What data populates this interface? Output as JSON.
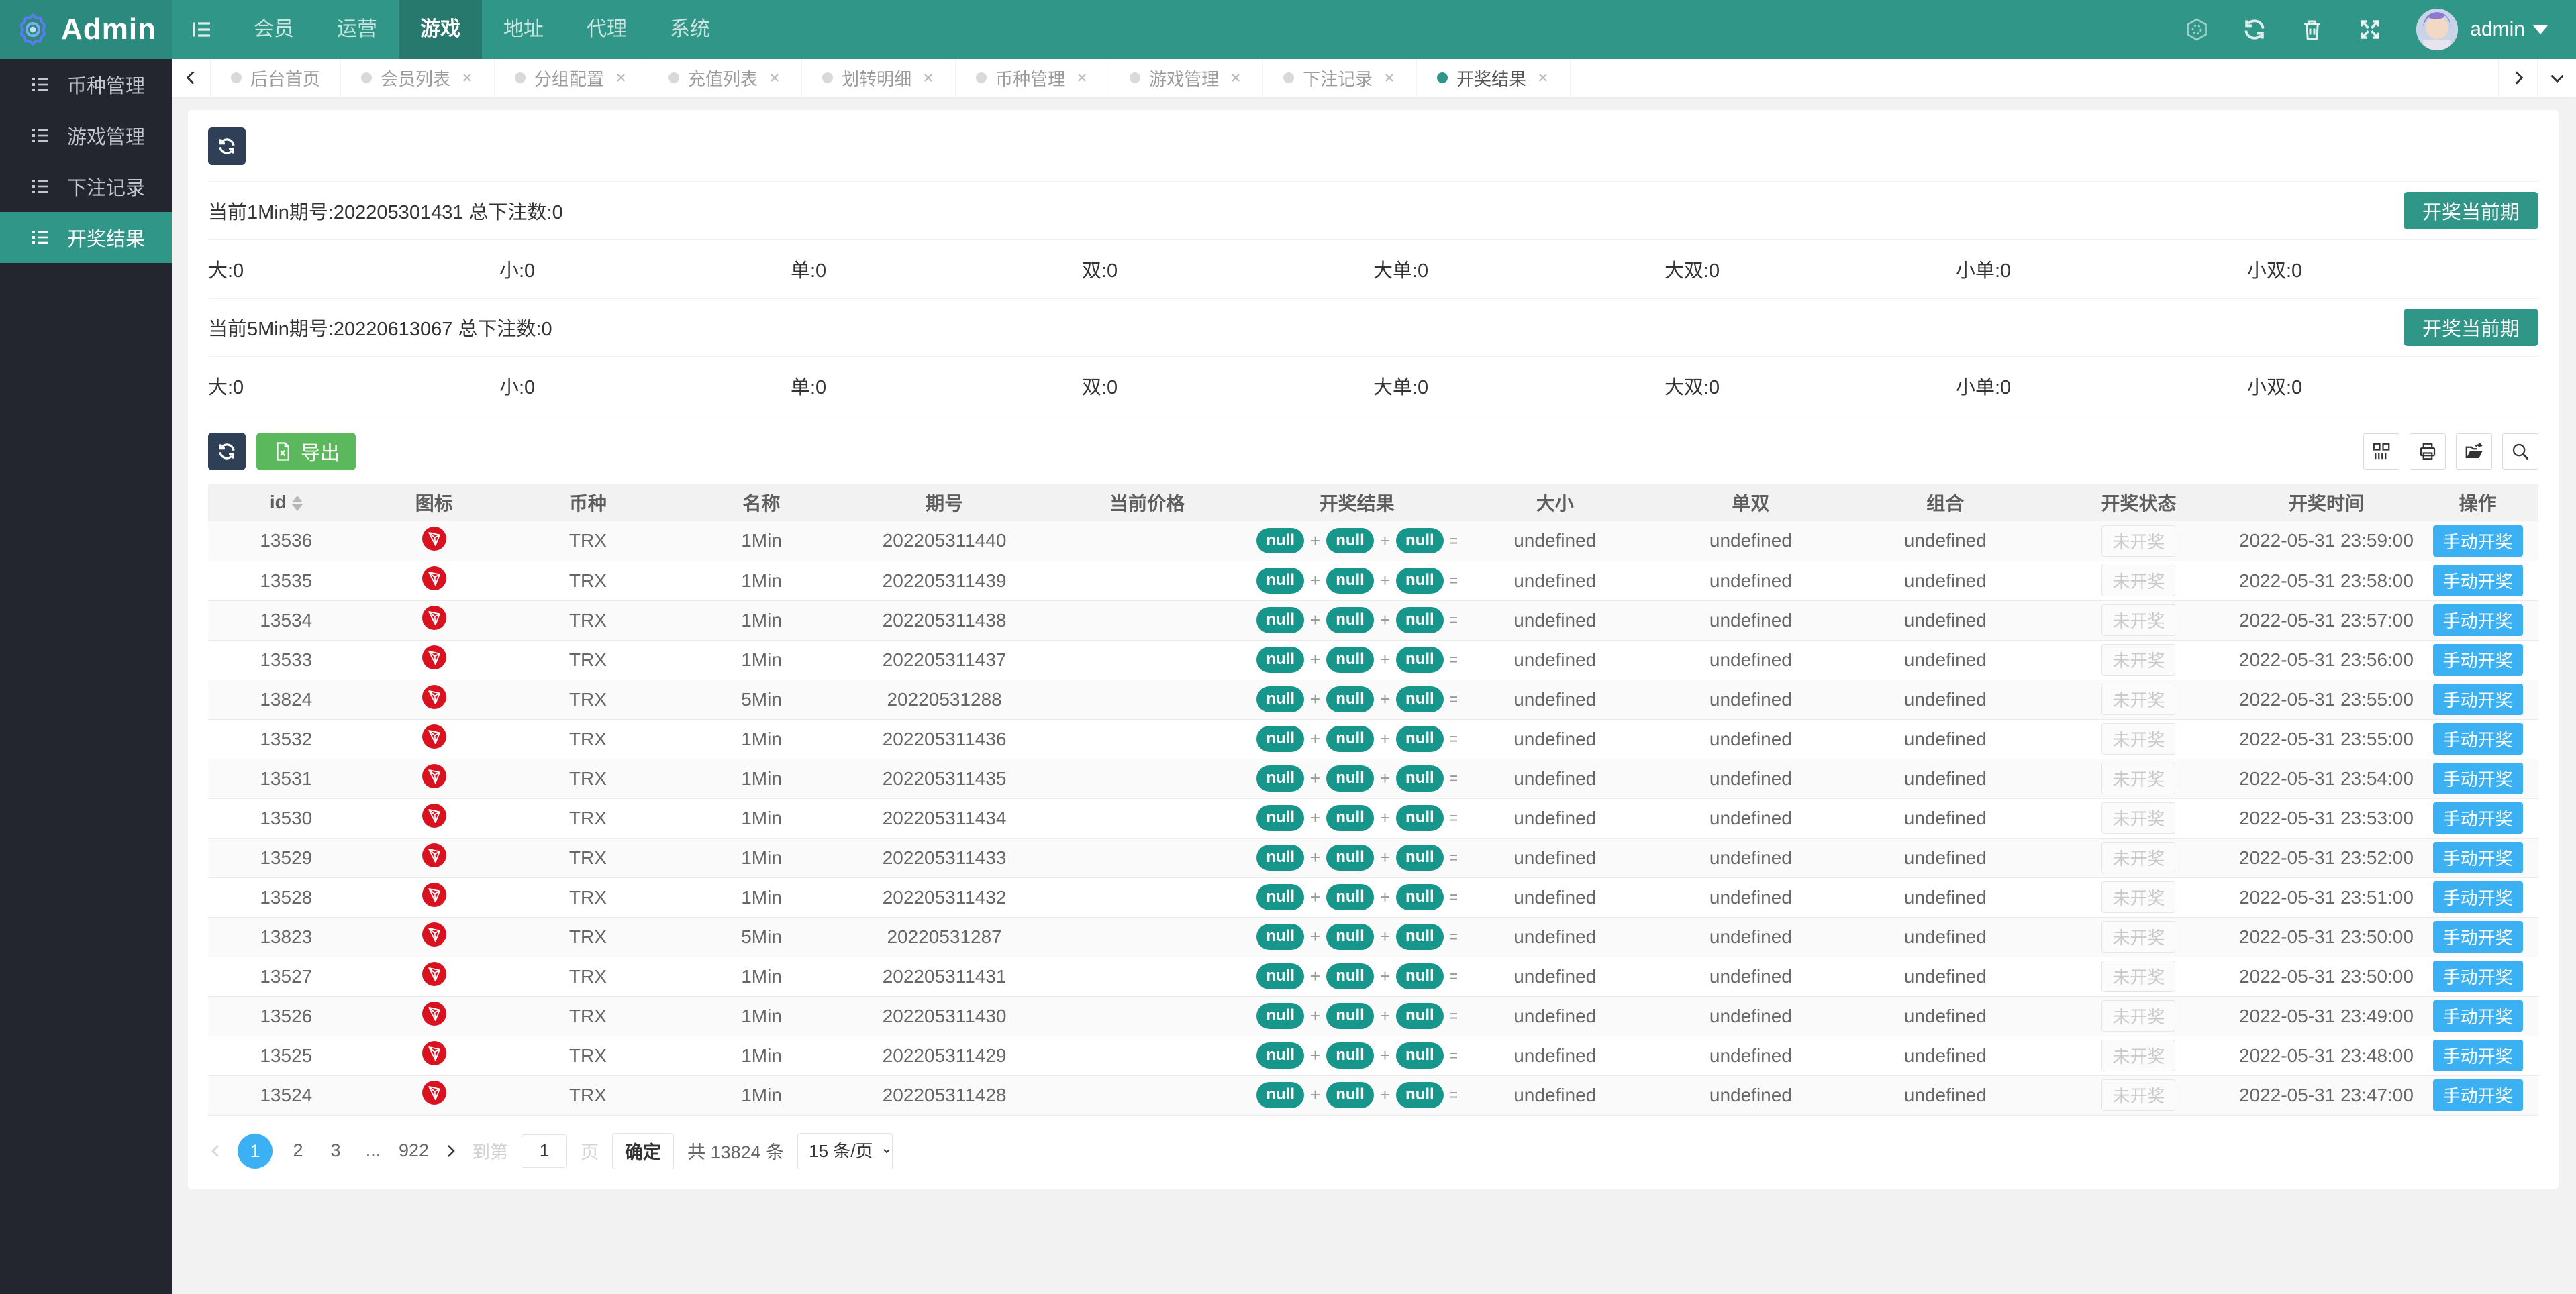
{
  "theme": {
    "teal": "#2f9688",
    "dark_sidebar": "#23262e",
    "navy": "#2f4056",
    "green": "#5cb85c",
    "blue": "#3bb0f2",
    "badge_teal": "#17968b",
    "trx_red": "#d8121f"
  },
  "header": {
    "logo_text": "Admin",
    "nav_items": [
      {
        "label": "会员",
        "active": false
      },
      {
        "label": "运营",
        "active": false
      },
      {
        "label": "游戏",
        "active": true
      },
      {
        "label": "地址",
        "active": false
      },
      {
        "label": "代理",
        "active": false
      },
      {
        "label": "系统",
        "active": false
      }
    ],
    "username": "admin"
  },
  "sidebar": {
    "items": [
      {
        "label": "币种管理",
        "active": false
      },
      {
        "label": "游戏管理",
        "active": false
      },
      {
        "label": "下注记录",
        "active": false
      },
      {
        "label": "开奖结果",
        "active": true
      }
    ]
  },
  "tabs": {
    "items": [
      {
        "label": "后台首页",
        "closable": false,
        "active": false
      },
      {
        "label": "会员列表",
        "closable": true,
        "active": false
      },
      {
        "label": "分组配置",
        "closable": true,
        "active": false
      },
      {
        "label": "充值列表",
        "closable": true,
        "active": false
      },
      {
        "label": "划转明细",
        "closable": true,
        "active": false
      },
      {
        "label": "币种管理",
        "closable": true,
        "active": false
      },
      {
        "label": "游戏管理",
        "closable": true,
        "active": false
      },
      {
        "label": "下注记录",
        "closable": true,
        "active": false
      },
      {
        "label": "开奖结果",
        "closable": true,
        "active": true
      }
    ]
  },
  "panels": [
    {
      "title": "当前1Min期号:202205301431 总下注数:0",
      "action_label": "开奖当前期",
      "stats": [
        "大:0",
        "小:0",
        "单:0",
        "双:0",
        "大单:0",
        "大双:0",
        "小单:0",
        "小双:0"
      ]
    },
    {
      "title": "当前5Min期号:20220613067 总下注数:0",
      "action_label": "开奖当前期",
      "stats": [
        "大:0",
        "小:0",
        "单:0",
        "双:0",
        "大单:0",
        "大双:0",
        "小单:0",
        "小双:0"
      ]
    }
  ],
  "toolbar": {
    "export_label": "导出"
  },
  "table": {
    "columns": [
      "id",
      "图标",
      "币种",
      "名称",
      "期号",
      "当前价格",
      "开奖结果",
      "大小",
      "单双",
      "组合",
      "开奖状态",
      "开奖时间",
      "操作"
    ],
    "result_badges": [
      "null",
      "null",
      "null"
    ],
    "result_suffix": "=...",
    "status_label": "未开奖",
    "action_label": "手动开奖",
    "rows": [
      {
        "id": "13536",
        "coin": "TRX",
        "name": "1Min",
        "issue": "202205311440",
        "price": "",
        "size": "undefined",
        "parity": "undefined",
        "combo": "undefined",
        "time": "2022-05-31 23:59:00"
      },
      {
        "id": "13535",
        "coin": "TRX",
        "name": "1Min",
        "issue": "202205311439",
        "price": "",
        "size": "undefined",
        "parity": "undefined",
        "combo": "undefined",
        "time": "2022-05-31 23:58:00"
      },
      {
        "id": "13534",
        "coin": "TRX",
        "name": "1Min",
        "issue": "202205311438",
        "price": "",
        "size": "undefined",
        "parity": "undefined",
        "combo": "undefined",
        "time": "2022-05-31 23:57:00"
      },
      {
        "id": "13533",
        "coin": "TRX",
        "name": "1Min",
        "issue": "202205311437",
        "price": "",
        "size": "undefined",
        "parity": "undefined",
        "combo": "undefined",
        "time": "2022-05-31 23:56:00"
      },
      {
        "id": "13824",
        "coin": "TRX",
        "name": "5Min",
        "issue": "20220531288",
        "price": "",
        "size": "undefined",
        "parity": "undefined",
        "combo": "undefined",
        "time": "2022-05-31 23:55:00"
      },
      {
        "id": "13532",
        "coin": "TRX",
        "name": "1Min",
        "issue": "202205311436",
        "price": "",
        "size": "undefined",
        "parity": "undefined",
        "combo": "undefined",
        "time": "2022-05-31 23:55:00"
      },
      {
        "id": "13531",
        "coin": "TRX",
        "name": "1Min",
        "issue": "202205311435",
        "price": "",
        "size": "undefined",
        "parity": "undefined",
        "combo": "undefined",
        "time": "2022-05-31 23:54:00"
      },
      {
        "id": "13530",
        "coin": "TRX",
        "name": "1Min",
        "issue": "202205311434",
        "price": "",
        "size": "undefined",
        "parity": "undefined",
        "combo": "undefined",
        "time": "2022-05-31 23:53:00"
      },
      {
        "id": "13529",
        "coin": "TRX",
        "name": "1Min",
        "issue": "202205311433",
        "price": "",
        "size": "undefined",
        "parity": "undefined",
        "combo": "undefined",
        "time": "2022-05-31 23:52:00"
      },
      {
        "id": "13528",
        "coin": "TRX",
        "name": "1Min",
        "issue": "202205311432",
        "price": "",
        "size": "undefined",
        "parity": "undefined",
        "combo": "undefined",
        "time": "2022-05-31 23:51:00"
      },
      {
        "id": "13823",
        "coin": "TRX",
        "name": "5Min",
        "issue": "20220531287",
        "price": "",
        "size": "undefined",
        "parity": "undefined",
        "combo": "undefined",
        "time": "2022-05-31 23:50:00"
      },
      {
        "id": "13527",
        "coin": "TRX",
        "name": "1Min",
        "issue": "202205311431",
        "price": "",
        "size": "undefined",
        "parity": "undefined",
        "combo": "undefined",
        "time": "2022-05-31 23:50:00"
      },
      {
        "id": "13526",
        "coin": "TRX",
        "name": "1Min",
        "issue": "202205311430",
        "price": "",
        "size": "undefined",
        "parity": "undefined",
        "combo": "undefined",
        "time": "2022-05-31 23:49:00"
      },
      {
        "id": "13525",
        "coin": "TRX",
        "name": "1Min",
        "issue": "202205311429",
        "price": "",
        "size": "undefined",
        "parity": "undefined",
        "combo": "undefined",
        "time": "2022-05-31 23:48:00"
      },
      {
        "id": "13524",
        "coin": "TRX",
        "name": "1Min",
        "issue": "202205311428",
        "price": "",
        "size": "undefined",
        "parity": "undefined",
        "combo": "undefined",
        "time": "2022-05-31 23:47:00"
      }
    ]
  },
  "pagination": {
    "pages": [
      {
        "label": "1",
        "active": true
      },
      {
        "label": "2",
        "active": false
      },
      {
        "label": "3",
        "active": false
      },
      {
        "label": "...",
        "active": false,
        "ellipsis": true
      },
      {
        "label": "922",
        "active": false
      }
    ],
    "jump_prefix": "到第",
    "jump_value": "1",
    "jump_suffix": "页",
    "confirm_label": "确定",
    "total_text": "共 13824 条",
    "page_size": "15 条/页"
  }
}
